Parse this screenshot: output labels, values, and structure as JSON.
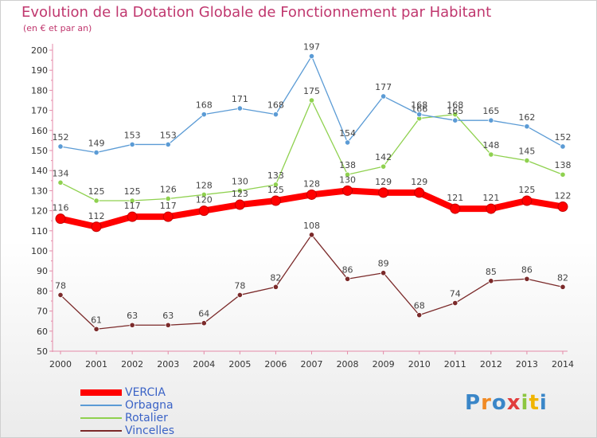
{
  "header": {
    "title": "Evolution de la Dotation Globale de Fonctionnement par Habitant",
    "subtitle": "(en € et par an)"
  },
  "logo": {
    "text": "Proxiti",
    "letter_colors": [
      "#3a86c8",
      "#f08a24",
      "#3a86c8",
      "#e13c3c",
      "#8cc63f",
      "#f0b400",
      "#3a86c8"
    ]
  },
  "chart_data": {
    "type": "line",
    "title": "Evolution de la Dotation Globale de Fonctionnement par Habitant",
    "subtitle": "(en € et par an)",
    "xlabel": "",
    "ylabel": "",
    "x": [
      "2000",
      "2001",
      "2002",
      "2003",
      "2004",
      "2005",
      "2006",
      "2007",
      "2008",
      "2009",
      "2010",
      "2011",
      "2012",
      "2013",
      "2014"
    ],
    "ylim": [
      50,
      200
    ],
    "yticks": [
      "50",
      "60",
      "70",
      "80",
      "90",
      "100",
      "110",
      "120",
      "130",
      "140",
      "150",
      "160",
      "170",
      "180",
      "190",
      "200"
    ],
    "grid": false,
    "legend_position": "bottom-left",
    "series": [
      {
        "name": "VERCIA",
        "color": "#ff0000",
        "emphasis": "thick",
        "values": [
          116,
          112,
          117,
          117,
          120,
          123,
          125,
          128,
          130,
          129,
          129,
          121,
          121,
          125,
          122
        ]
      },
      {
        "name": "Orbagna",
        "color": "#5b9bd5",
        "emphasis": "normal",
        "values": [
          152,
          149,
          153,
          153,
          168,
          171,
          168,
          197,
          154,
          177,
          168,
          165,
          165,
          162,
          152
        ]
      },
      {
        "name": "Rotalier",
        "color": "#8fd14f",
        "emphasis": "normal",
        "values": [
          134,
          125,
          125,
          126,
          128,
          130,
          133,
          175,
          138,
          142,
          166,
          168,
          148,
          145,
          138
        ]
      },
      {
        "name": "Vincelles",
        "color": "#7b2a2a",
        "emphasis": "normal",
        "values": [
          78,
          61,
          63,
          63,
          64,
          78,
          82,
          108,
          86,
          89,
          68,
          74,
          85,
          86,
          82
        ]
      }
    ],
    "label_overrides": {
      "VERCIA": {
        "10": "129"
      },
      "Orbagna": {
        "10": "168"
      },
      "Rotalier": {
        "10": "166"
      }
    }
  }
}
